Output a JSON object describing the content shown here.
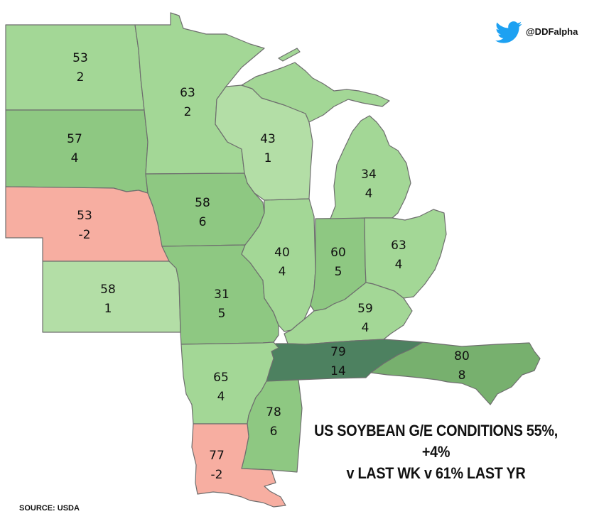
{
  "branding": {
    "icon": "twitter-bird-icon",
    "handle": "@DDFalpha"
  },
  "headline": {
    "line1": "US SOYBEAN G/E CONDITIONS 55%, +4%",
    "line2": "v LAST WK v 61% LAST YR"
  },
  "source": "SOURCE: USDA",
  "legend_colors": {
    "light": "#b3dea6",
    "mid": "#a2d695",
    "darker": "#8ec882",
    "dark": "#77b06e",
    "darkest": "#4d8160",
    "negative": "#f7aea1",
    "water": "#ffffff"
  },
  "states": [
    {
      "id": "north-dakota",
      "ge": "53",
      "change": "2"
    },
    {
      "id": "south-dakota",
      "ge": "57",
      "change": "4"
    },
    {
      "id": "nebraska",
      "ge": "53",
      "change": "-2"
    },
    {
      "id": "kansas",
      "ge": "58",
      "change": "1"
    },
    {
      "id": "minnesota",
      "ge": "63",
      "change": "2"
    },
    {
      "id": "iowa",
      "ge": "58",
      "change": "6"
    },
    {
      "id": "missouri",
      "ge": "31",
      "change": "5"
    },
    {
      "id": "arkansas",
      "ge": "65",
      "change": "4"
    },
    {
      "id": "louisiana",
      "ge": "77",
      "change": "-2"
    },
    {
      "id": "wisconsin",
      "ge": "43",
      "change": "1"
    },
    {
      "id": "illinois",
      "ge": "40",
      "change": "4"
    },
    {
      "id": "mississippi",
      "ge": "78",
      "change": "6"
    },
    {
      "id": "michigan",
      "ge": "34",
      "change": "4"
    },
    {
      "id": "indiana",
      "ge": "60",
      "change": "5"
    },
    {
      "id": "ohio",
      "ge": "63",
      "change": "4"
    },
    {
      "id": "kentucky",
      "ge": "59",
      "change": "4"
    },
    {
      "id": "tennessee",
      "ge": "79",
      "change": "14"
    },
    {
      "id": "north-carolina",
      "ge": "80",
      "change": "8"
    }
  ]
}
